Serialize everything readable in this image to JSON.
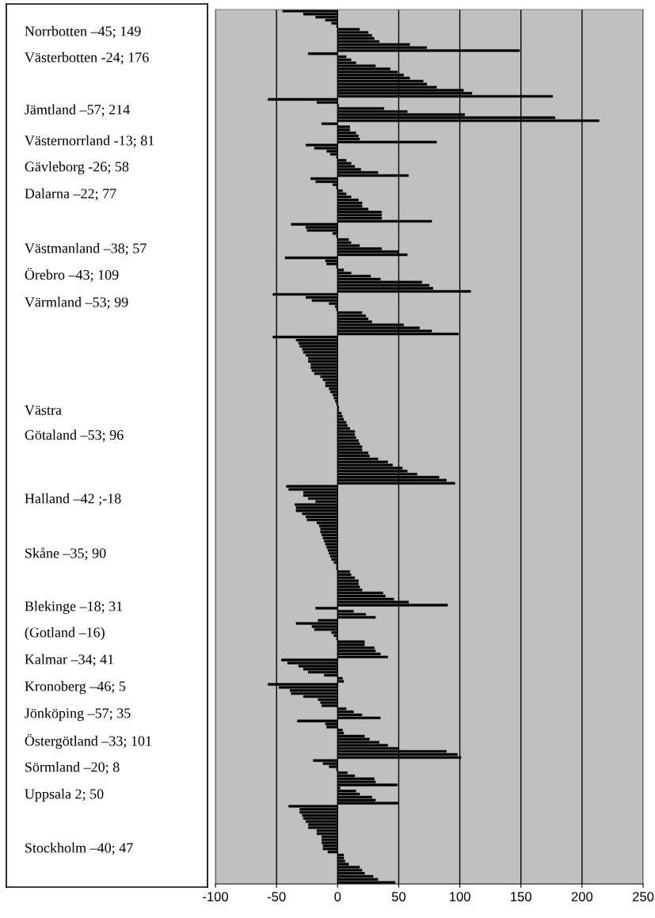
{
  "chart_data": {
    "type": "bar",
    "orientation": "horizontal",
    "color": "#000000",
    "grid": "x",
    "xlim": [
      -100,
      250
    ],
    "xticks": [
      -100,
      -50,
      0,
      50,
      100,
      150,
      200,
      250
    ],
    "categories": [
      null,
      null,
      null,
      null,
      null,
      null,
      null,
      null,
      null,
      null,
      null,
      null,
      null,
      null,
      null,
      null,
      null,
      null,
      null,
      null,
      null,
      null,
      null,
      null,
      null,
      null,
      null,
      null,
      null,
      null,
      null,
      null,
      null,
      null,
      null,
      null,
      null,
      null,
      null,
      null,
      null,
      null,
      null,
      null,
      null,
      null,
      null,
      null,
      null,
      null,
      null,
      null,
      null,
      null,
      null,
      null,
      null,
      null,
      null,
      null,
      null,
      null,
      null,
      null,
      null,
      null,
      null,
      null,
      null,
      null,
      null,
      null,
      null,
      null,
      null,
      null,
      null,
      null,
      null,
      null,
      null,
      null,
      null,
      null,
      null,
      null,
      null,
      null,
      null,
      null,
      null,
      null,
      null,
      null,
      null,
      null,
      null,
      null,
      null,
      null,
      null,
      null,
      null,
      null,
      null,
      null,
      null,
      null,
      null,
      null,
      null,
      null,
      null,
      null,
      null,
      null,
      null,
      null,
      null,
      null,
      null,
      null,
      null,
      null,
      null,
      null,
      null,
      null,
      null,
      null,
      null,
      null,
      null,
      null,
      null,
      null,
      null,
      null,
      null,
      null,
      null,
      null,
      null,
      null,
      null,
      null,
      null,
      null,
      null,
      null,
      null,
      null,
      null,
      null,
      null,
      null,
      null,
      null,
      null,
      null,
      null,
      null,
      null,
      null,
      null,
      null,
      null,
      null,
      null,
      null,
      null,
      null,
      null,
      null,
      null,
      null,
      null,
      null,
      null,
      null,
      null,
      null,
      null,
      null,
      null,
      null,
      null,
      null,
      null,
      null,
      null,
      null,
      null,
      null,
      null,
      null,
      null,
      null,
      null,
      null,
      null,
      null,
      null,
      null,
      null,
      null,
      null,
      null,
      null,
      null,
      null,
      null,
      null,
      null,
      null,
      null,
      null,
      null,
      null,
      null,
      null,
      null,
      null,
      null,
      null,
      null,
      null,
      null,
      null,
      null,
      null,
      null,
      null,
      null,
      null,
      null,
      null,
      null,
      null,
      null,
      null,
      null,
      null,
      null,
      null,
      null,
      null,
      null,
      null,
      null,
      null,
      null,
      null,
      null,
      null,
      null,
      null,
      null,
      null,
      null,
      null,
      null,
      null,
      null,
      null,
      null,
      null,
      null,
      null,
      null,
      null,
      null,
      null,
      null,
      null,
      null,
      null,
      null,
      null,
      null,
      null,
      null,
      null,
      null,
      null,
      null,
      null
    ],
    "values": [
      -45,
      -28,
      -18,
      -10,
      -5,
      -1,
      18,
      25,
      28,
      30,
      34,
      59,
      73,
      149,
      -24,
      7,
      11,
      15,
      31,
      43,
      49,
      54,
      59,
      70,
      73,
      81,
      103,
      110,
      176,
      -57,
      -17,
      1,
      38,
      57,
      104,
      178,
      214,
      -13,
      10,
      10,
      15,
      17,
      18,
      81,
      -26,
      -19,
      -9,
      -6,
      -1,
      7,
      11,
      14,
      19,
      33,
      58,
      -22,
      -18,
      -4,
      -1,
      4,
      7,
      11,
      17,
      20,
      20,
      25,
      36,
      36,
      36,
      77,
      -38,
      -26,
      -25,
      -4,
      -1,
      9,
      11,
      18,
      36,
      50,
      57,
      -43,
      -10,
      -9,
      -1,
      5,
      11,
      27,
      35,
      69,
      75,
      78,
      109,
      -53,
      -26,
      -21,
      -7,
      -2,
      -1,
      20,
      23,
      25,
      28,
      54,
      67,
      77,
      99,
      -53,
      -34,
      -32,
      -31,
      -29,
      -28,
      -26,
      -24,
      -24,
      -22,
      -22,
      -21,
      -19,
      -14,
      -12,
      -10,
      -10,
      -7,
      -6,
      -4,
      -3,
      -2,
      -1,
      1,
      1,
      3,
      4,
      5,
      7,
      8,
      10,
      14,
      14,
      15,
      17,
      18,
      20,
      20,
      25,
      26,
      33,
      41,
      45,
      53,
      57,
      65,
      83,
      89,
      96,
      -42,
      -40,
      -28,
      -28,
      -24,
      -18,
      -35,
      -34,
      -34,
      -29,
      -26,
      -25,
      -17,
      -15,
      -14,
      -14,
      -13,
      -12,
      -11,
      -10,
      -9,
      -8,
      -7,
      -6,
      -5,
      -3,
      -1,
      -1,
      10,
      11,
      14,
      17,
      17,
      18,
      20,
      37,
      39,
      46,
      58,
      90,
      -18,
      13,
      23,
      31,
      -16,
      -34,
      -21,
      -19,
      -5,
      -3,
      -1,
      22,
      22,
      30,
      31,
      35,
      41,
      -46,
      -41,
      -32,
      -28,
      -24,
      -11,
      4,
      5,
      -57,
      -48,
      -39,
      -38,
      -28,
      -16,
      -14,
      -13,
      7,
      13,
      20,
      35,
      -33,
      -10,
      -9,
      4,
      5,
      22,
      26,
      34,
      41,
      50,
      89,
      98,
      101,
      -20,
      -12,
      -7,
      -1,
      8,
      14,
      30,
      31,
      49,
      2,
      15,
      18,
      28,
      31,
      50,
      -40,
      -31,
      -31,
      -29,
      -28,
      -26,
      -24,
      -24,
      -17,
      -17,
      -13,
      -13,
      -13,
      -12,
      -12,
      -8,
      5,
      5,
      6,
      9,
      18,
      20,
      22,
      29,
      33,
      47
    ],
    "annotations": [
      "Norrbotten –45; 149",
      "Västerbotten -24; 176",
      "Jämtland –57; 214",
      "Västernorrland -13; 81",
      "Gävleborg -26; 58",
      "Dalarna –22; 77",
      "Västmanland –38; 57",
      "Örebro –43; 109",
      "Värmland –53; 99",
      "Västra\nGötaland –53; 96",
      "Halland –42 ;-18",
      "Skåne –35; 90",
      "Blekinge –18; 31",
      "(Gotland –16)",
      "Kalmar –34; 41",
      "Kronoberg –46; 5",
      "Jönköping –57; 35",
      "Östergötland –33; 101",
      "Sörmland –20; 8",
      "Uppsala 2; 50",
      "Stockholm –40; 47"
    ]
  }
}
